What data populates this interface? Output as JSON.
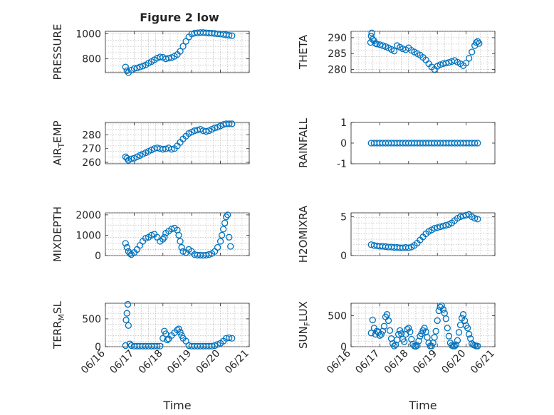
{
  "figure": {
    "title": "Figure 2 low"
  },
  "colors": {
    "marker": "#0072BD",
    "axis": "#262626",
    "grid": "#b0b0b0"
  },
  "chart_data": [
    {
      "type": "scatter",
      "id": "pressure",
      "title": "Figure 2 low",
      "ylabel": "PRESSURE",
      "xlabel": "",
      "ylim": [
        690,
        1020
      ],
      "yticks": [
        800,
        1000
      ],
      "xlim": [
        "06/16",
        "06/21"
      ],
      "xtick_labels_visible": false,
      "grid": true,
      "x": [
        16.7,
        16.75,
        16.8,
        16.9,
        17.0,
        17.1,
        17.2,
        17.3,
        17.4,
        17.5,
        17.6,
        17.7,
        17.8,
        17.9,
        18.0,
        18.1,
        18.2,
        18.3,
        18.4,
        18.5,
        18.6,
        18.7,
        18.8,
        18.9,
        19.0,
        19.1,
        19.2,
        19.3,
        19.4,
        19.5,
        19.6,
        19.7,
        19.8,
        19.9,
        20.0,
        20.1,
        20.2,
        20.3,
        20.4
      ],
      "y": [
        735,
        705,
        690,
        710,
        722,
        727,
        735,
        742,
        752,
        765,
        778,
        792,
        805,
        815,
        812,
        800,
        806,
        810,
        820,
        835,
        860,
        900,
        940,
        975,
        998,
        1005,
        1008,
        1010,
        1010,
        1008,
        1006,
        1005,
        1003,
        1000,
        998,
        995,
        992,
        988,
        985
      ]
    },
    {
      "type": "scatter",
      "id": "theta",
      "ylabel": "THETA",
      "xlabel": "",
      "ylim": [
        279,
        292
      ],
      "yticks": [
        280,
        285,
        290
      ],
      "xlim": [
        "06/16",
        "06/21"
      ],
      "xtick_labels_visible": false,
      "grid": true,
      "x": [
        16.68,
        16.7,
        16.72,
        16.75,
        16.8,
        16.85,
        16.9,
        17.0,
        17.1,
        17.2,
        17.3,
        17.4,
        17.5,
        17.6,
        17.7,
        17.8,
        17.9,
        18.0,
        18.1,
        18.2,
        18.3,
        18.4,
        18.5,
        18.6,
        18.7,
        18.8,
        18.9,
        19.0,
        19.1,
        19.2,
        19.3,
        19.4,
        19.5,
        19.6,
        19.7,
        19.8,
        19.9,
        20.0,
        20.1,
        20.2,
        20.3,
        20.35,
        20.4,
        20.45
      ],
      "y": [
        288.5,
        290.5,
        291.5,
        289.5,
        289.0,
        288.2,
        288.0,
        287.8,
        287.5,
        287.2,
        286.8,
        286.3,
        285.8,
        287.5,
        287.0,
        286.5,
        286.2,
        286.8,
        286.0,
        285.5,
        285.0,
        284.5,
        283.8,
        283.0,
        281.8,
        280.8,
        280.0,
        281.0,
        281.5,
        281.8,
        282.0,
        282.2,
        282.5,
        282.8,
        282.3,
        281.8,
        281.2,
        282.0,
        283.5,
        285.5,
        287.5,
        288.5,
        288.8,
        288.2
      ]
    },
    {
      "type": "scatter",
      "id": "air_temp",
      "ylabel": "AIR_TEMP",
      "xlabel": "",
      "ylim": [
        259,
        289
      ],
      "yticks": [
        260,
        270,
        280
      ],
      "xlim": [
        "06/16",
        "06/21"
      ],
      "xtick_labels_visible": false,
      "grid": true,
      "x": [
        16.7,
        16.75,
        16.8,
        16.9,
        17.0,
        17.1,
        17.2,
        17.3,
        17.4,
        17.5,
        17.6,
        17.7,
        17.8,
        17.9,
        18.0,
        18.1,
        18.2,
        18.3,
        18.4,
        18.5,
        18.6,
        18.7,
        18.8,
        18.9,
        19.0,
        19.1,
        19.2,
        19.3,
        19.4,
        19.5,
        19.6,
        19.7,
        19.8,
        19.9,
        20.0,
        20.1,
        20.2,
        20.3,
        20.4
      ],
      "y": [
        264,
        263,
        261.5,
        262.5,
        263,
        264,
        265,
        266,
        267,
        268,
        269,
        270,
        270.5,
        270,
        269.5,
        269.8,
        270.5,
        269.5,
        270,
        272,
        274.5,
        277,
        279,
        281,
        282,
        283,
        283.5,
        284,
        283,
        282.5,
        283,
        284,
        285,
        285.5,
        286.5,
        287.5,
        288,
        288,
        288
      ]
    },
    {
      "type": "scatter",
      "id": "rainfall",
      "ylabel": "RAINFALL",
      "xlabel": "",
      "ylim": [
        -1,
        1
      ],
      "yticks": [
        -1,
        0,
        1
      ],
      "xlim": [
        "06/16",
        "06/21"
      ],
      "xtick_labels_visible": false,
      "grid": false,
      "x": [
        16.7,
        16.8,
        16.9,
        17.0,
        17.1,
        17.2,
        17.3,
        17.4,
        17.5,
        17.6,
        17.7,
        17.8,
        17.9,
        18.0,
        18.1,
        18.2,
        18.3,
        18.4,
        18.5,
        18.6,
        18.7,
        18.8,
        18.9,
        19.0,
        19.1,
        19.2,
        19.3,
        19.4,
        19.5,
        19.6,
        19.7,
        19.8,
        19.9,
        20.0,
        20.1,
        20.2,
        20.3,
        20.4
      ],
      "y": [
        0,
        0,
        0,
        0,
        0,
        0,
        0,
        0,
        0,
        0,
        0,
        0,
        0,
        0,
        0,
        0,
        0,
        0,
        0,
        0,
        0,
        0,
        0,
        0,
        0,
        0,
        0,
        0,
        0,
        0,
        0,
        0,
        0,
        0,
        0,
        0,
        0,
        0
      ]
    },
    {
      "type": "scatter",
      "id": "mixdepth",
      "ylabel": "MIXDEPTH",
      "xlabel": "",
      "ylim": [
        0,
        2100
      ],
      "yticks": [
        0,
        1000,
        2000
      ],
      "xlim": [
        "06/16",
        "06/21"
      ],
      "xtick_labels_visible": false,
      "grid": true,
      "x": [
        16.7,
        16.75,
        16.8,
        16.85,
        16.9,
        17.0,
        17.1,
        17.2,
        17.3,
        17.4,
        17.5,
        17.6,
        17.7,
        17.8,
        17.9,
        18.0,
        18.05,
        18.1,
        18.2,
        18.3,
        18.4,
        18.5,
        18.55,
        18.6,
        18.65,
        18.7,
        18.8,
        18.9,
        19.0,
        19.1,
        19.2,
        19.3,
        19.4,
        19.5,
        19.6,
        19.7,
        19.8,
        19.9,
        20.0,
        20.05,
        20.1,
        20.15,
        20.2,
        20.25,
        20.3,
        20.35
      ],
      "y": [
        600,
        400,
        200,
        100,
        50,
        150,
        300,
        500,
        700,
        850,
        900,
        1000,
        1050,
        900,
        700,
        800,
        900,
        1100,
        1200,
        1300,
        1350,
        1250,
        1000,
        700,
        400,
        200,
        150,
        300,
        200,
        50,
        20,
        20,
        10,
        20,
        50,
        100,
        200,
        400,
        700,
        1000,
        1300,
        1600,
        1900,
        2000,
        900,
        450
      ]
    },
    {
      "type": "scatter",
      "id": "h2omixra",
      "ylabel": "H2OMIXRA",
      "xlabel": "",
      "ylim": [
        0,
        5.5
      ],
      "yticks": [
        0,
        5
      ],
      "xlim": [
        "06/16",
        "06/21"
      ],
      "xtick_labels_visible": false,
      "grid": true,
      "x": [
        16.7,
        16.8,
        16.9,
        17.0,
        17.1,
        17.2,
        17.3,
        17.4,
        17.5,
        17.6,
        17.7,
        17.8,
        17.9,
        18.0,
        18.1,
        18.2,
        18.3,
        18.4,
        18.5,
        18.6,
        18.7,
        18.8,
        18.9,
        19.0,
        19.1,
        19.2,
        19.3,
        19.4,
        19.5,
        19.6,
        19.7,
        19.8,
        19.9,
        20.0,
        20.1,
        20.2,
        20.3,
        20.4
      ],
      "y": [
        1.4,
        1.3,
        1.25,
        1.2,
        1.2,
        1.15,
        1.1,
        1.1,
        1.05,
        1.05,
        1.0,
        1.0,
        1.05,
        1.0,
        1.1,
        1.3,
        1.6,
        2.0,
        2.4,
        2.8,
        3.1,
        3.3,
        3.5,
        3.6,
        3.7,
        3.8,
        3.9,
        4.0,
        4.2,
        4.5,
        4.8,
        5.0,
        5.1,
        5.2,
        5.3,
        5.0,
        4.8,
        4.7
      ]
    },
    {
      "type": "scatter",
      "id": "terr_msl",
      "ylabel": "TERR_MSL",
      "xlabel": "Time",
      "ylim": [
        0,
        780
      ],
      "yticks": [
        0,
        500
      ],
      "xlim": [
        "06/16",
        "06/21"
      ],
      "xtick_labels": [
        "06/16",
        "06/17",
        "06/18",
        "06/19",
        "06/20",
        "06/21"
      ],
      "grid": true,
      "x": [
        16.7,
        16.72,
        16.75,
        16.78,
        16.8,
        16.85,
        16.9,
        17.0,
        17.1,
        17.2,
        17.3,
        17.4,
        17.5,
        17.6,
        17.7,
        17.8,
        17.9,
        18.0,
        18.05,
        18.1,
        18.15,
        18.2,
        18.3,
        18.4,
        18.5,
        18.55,
        18.6,
        18.65,
        18.7,
        18.8,
        18.9,
        19.0,
        19.1,
        19.2,
        19.3,
        19.4,
        19.5,
        19.6,
        19.7,
        19.8,
        19.9,
        20.0,
        20.1,
        20.2,
        20.3,
        20.4
      ],
      "y": [
        20,
        480,
        600,
        760,
        380,
        50,
        20,
        10,
        10,
        10,
        10,
        10,
        10,
        10,
        10,
        10,
        10,
        150,
        280,
        230,
        120,
        140,
        200,
        250,
        300,
        320,
        260,
        200,
        150,
        100,
        20,
        10,
        10,
        10,
        10,
        10,
        10,
        10,
        10,
        20,
        40,
        60,
        100,
        150,
        160,
        150
      ]
    },
    {
      "type": "scatter",
      "id": "sun_flux",
      "ylabel": "SUN_FLUX",
      "xlabel": "Time",
      "ylim": [
        0,
        700
      ],
      "yticks": [
        0,
        500
      ],
      "xlim": [
        "06/16",
        "06/21"
      ],
      "xtick_labels": [
        "06/16",
        "06/17",
        "06/18",
        "06/19",
        "06/20",
        "06/21"
      ],
      "grid": true,
      "x": [
        16.7,
        16.75,
        16.8,
        16.85,
        16.9,
        16.95,
        17.0,
        17.05,
        17.1,
        17.15,
        17.2,
        17.25,
        17.3,
        17.35,
        17.4,
        17.45,
        17.5,
        17.55,
        17.6,
        17.65,
        17.7,
        17.75,
        17.8,
        17.85,
        17.9,
        17.95,
        18.0,
        18.05,
        18.1,
        18.15,
        18.2,
        18.25,
        18.3,
        18.35,
        18.4,
        18.45,
        18.5,
        18.55,
        18.6,
        18.65,
        18.7,
        18.75,
        18.8,
        18.85,
        18.9,
        18.95,
        19.0,
        19.05,
        19.1,
        19.15,
        19.2,
        19.25,
        19.3,
        19.35,
        19.4,
        19.45,
        19.5,
        19.55,
        19.6,
        19.65,
        19.7,
        19.75,
        19.8,
        19.85,
        19.9,
        19.95,
        20.0,
        20.05,
        20.1,
        20.15,
        20.2,
        20.25,
        20.3,
        20.35,
        20.4
      ],
      "y": [
        220,
        430,
        300,
        200,
        250,
        230,
        180,
        200,
        250,
        330,
        480,
        520,
        420,
        260,
        130,
        50,
        10,
        30,
        110,
        200,
        260,
        210,
        120,
        80,
        200,
        280,
        300,
        240,
        120,
        40,
        10,
        5,
        20,
        90,
        170,
        210,
        260,
        300,
        240,
        150,
        60,
        10,
        10,
        60,
        150,
        250,
        420,
        580,
        640,
        660,
        600,
        540,
        450,
        300,
        170,
        60,
        20,
        10,
        10,
        30,
        100,
        230,
        350,
        460,
        520,
        420,
        340,
        300,
        200,
        130,
        50,
        30,
        20,
        10,
        10
      ]
    }
  ]
}
